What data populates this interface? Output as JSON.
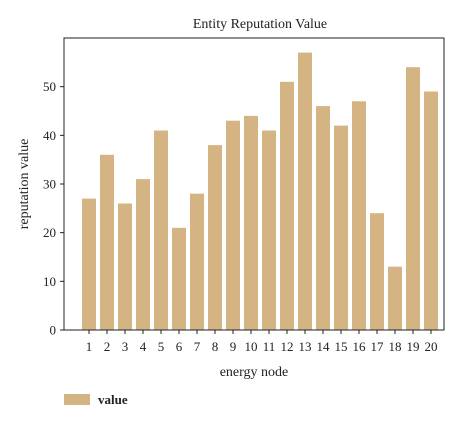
{
  "chart_data": {
    "type": "bar",
    "title": "Entity Reputation Value",
    "xlabel": "energy node",
    "ylabel": "reputation value",
    "categories": [
      "1",
      "2",
      "3",
      "4",
      "5",
      "6",
      "7",
      "8",
      "9",
      "10",
      "11",
      "12",
      "13",
      "14",
      "15",
      "16",
      "17",
      "18",
      "19",
      "20"
    ],
    "series": [
      {
        "name": "value",
        "color": "#d4b483",
        "values": [
          27,
          36,
          26,
          31,
          41,
          21,
          28,
          38,
          43,
          44,
          41,
          51,
          57,
          46,
          42,
          47,
          24,
          13,
          54,
          49
        ]
      }
    ],
    "ylim": [
      0,
      60
    ],
    "yticks": [
      0,
      10,
      20,
      30,
      40,
      50
    ],
    "grid": false,
    "legend_position": "bottom-left"
  }
}
